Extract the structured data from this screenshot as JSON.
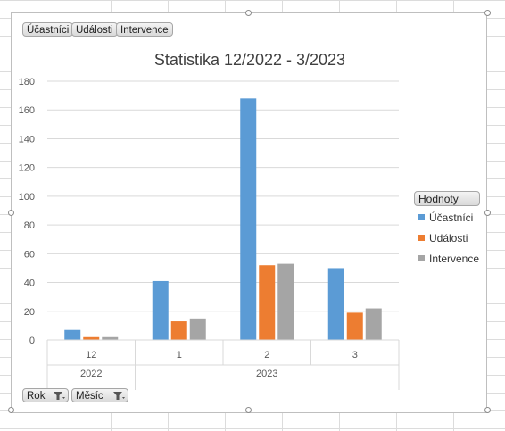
{
  "pivot_fields": {
    "top": [
      "Účastníci",
      "Události",
      "Intervence"
    ],
    "bottom": [
      "Rok",
      "Měsíc"
    ]
  },
  "legend": {
    "title": "Hodnoty"
  },
  "colors": {
    "Účastníci": "#5b9bd5",
    "Události": "#ed7d31",
    "Intervence": "#a5a5a5"
  },
  "chart_data": {
    "type": "bar",
    "title": "Statistika 12/2022 - 3/2023",
    "xlabel": "",
    "ylabel": "",
    "ylim": [
      0,
      180
    ],
    "yticks": [
      0,
      20,
      40,
      60,
      80,
      100,
      120,
      140,
      160,
      180
    ],
    "categories": [
      "12",
      "1",
      "2",
      "3"
    ],
    "category_groups": [
      {
        "label": "2022",
        "categories": [
          "12"
        ]
      },
      {
        "label": "2023",
        "categories": [
          "1",
          "2",
          "3"
        ]
      }
    ],
    "series": [
      {
        "name": "Účastníci",
        "values": [
          7,
          41,
          168,
          50
        ]
      },
      {
        "name": "Události",
        "values": [
          2,
          13,
          52,
          19
        ]
      },
      {
        "name": "Intervence",
        "values": [
          2,
          15,
          53,
          22
        ]
      }
    ],
    "grid": true,
    "legend_position": "right"
  }
}
